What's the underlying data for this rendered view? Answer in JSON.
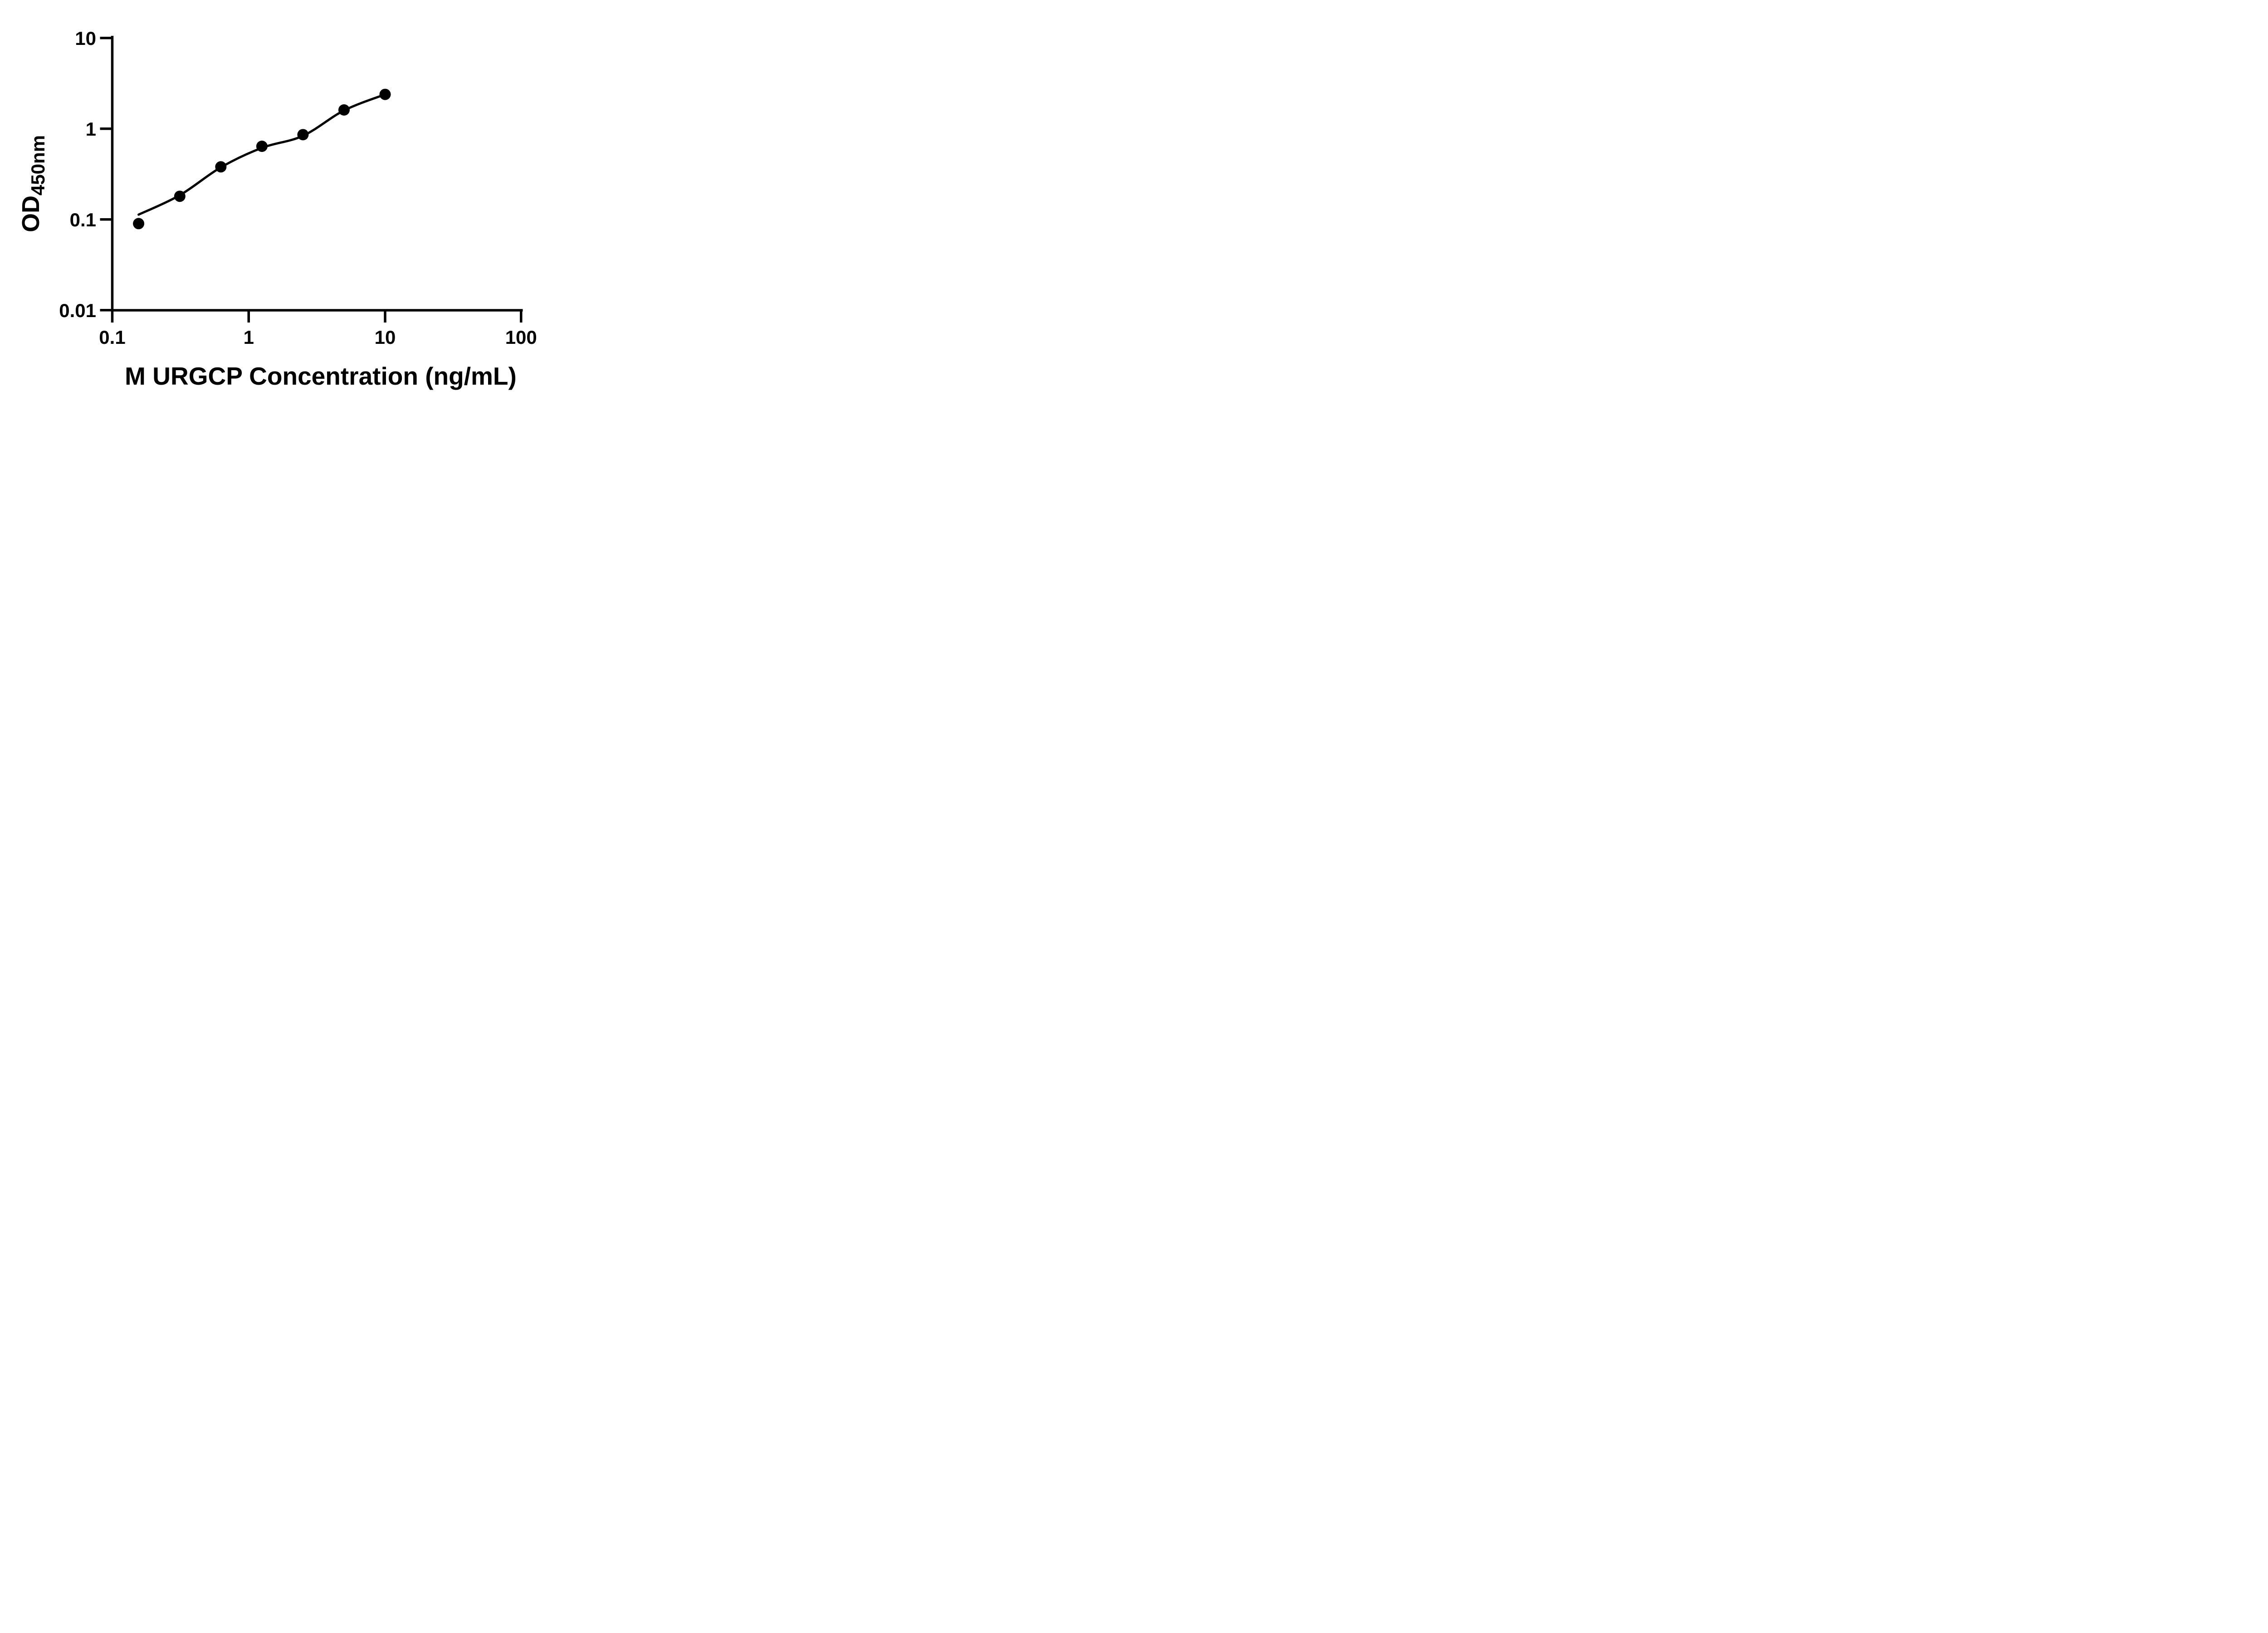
{
  "figure": {
    "background": "#ffffff",
    "ink_color": "#000000"
  },
  "chart_data": {
    "type": "scatter",
    "subtype": "standard-curve-with-fitted-line",
    "xlabel": "M URGCP Concentration (ng/mL)",
    "ylabel_main": "OD",
    "ylabel_sub": "450nm",
    "x_scale": "log",
    "y_scale": "log",
    "xlim": [
      0.1,
      100
    ],
    "ylim": [
      0.01,
      10
    ],
    "grid": "off",
    "legend": "none",
    "marker": {
      "shape": "circle",
      "color": "#000000"
    },
    "line_color": "#000000",
    "x_ticks": [
      {
        "value": 0.1,
        "label": "0.1"
      },
      {
        "value": 1,
        "label": "1"
      },
      {
        "value": 10,
        "label": "10"
      },
      {
        "value": 100,
        "label": "100"
      }
    ],
    "y_ticks": [
      {
        "value": 10,
        "label": "10"
      },
      {
        "value": 1,
        "label": "1"
      },
      {
        "value": 0.1,
        "label": "0.1"
      },
      {
        "value": 0.01,
        "label": "0.01"
      }
    ],
    "points": [
      {
        "x": 0.156,
        "od": 0.09
      },
      {
        "x": 0.3125,
        "od": 0.18
      },
      {
        "x": 0.625,
        "od": 0.38
      },
      {
        "x": 1.25,
        "od": 0.64
      },
      {
        "x": 2.5,
        "od": 0.86
      },
      {
        "x": 5,
        "od": 1.61
      },
      {
        "x": 10,
        "od": 2.39
      }
    ],
    "trend_points": [
      [
        0.156,
        0.113
      ],
      [
        0.3125,
        0.185
      ],
      [
        0.625,
        0.375
      ],
      [
        1.25,
        0.615
      ],
      [
        2.5,
        0.835
      ],
      [
        5,
        1.59
      ],
      [
        10,
        2.39
      ]
    ]
  }
}
